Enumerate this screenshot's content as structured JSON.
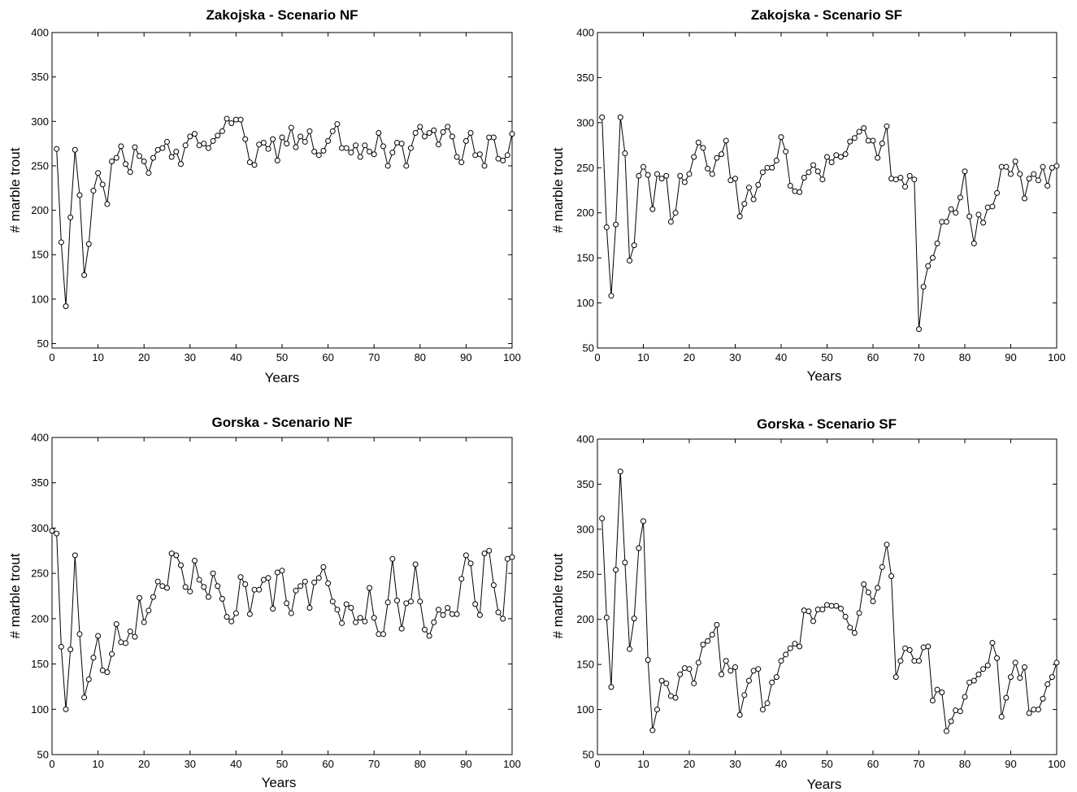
{
  "chart_data": [
    {
      "type": "line",
      "title": "Zakojska - Scenario NF",
      "xlabel": "Years",
      "ylabel": "# marble trout",
      "xlim": [
        0,
        100
      ],
      "ylim": [
        45,
        400
      ],
      "xticks": [
        0,
        10,
        20,
        30,
        40,
        50,
        60,
        70,
        80,
        90,
        100
      ],
      "yticks": [
        50,
        100,
        150,
        200,
        250,
        300,
        350,
        400
      ],
      "grid": false,
      "series": [
        {
          "marker": "circle",
          "x": [
            1,
            2,
            3,
            4,
            5,
            6,
            7,
            8,
            9,
            10,
            11,
            12,
            13,
            14,
            15,
            16,
            17,
            18,
            19,
            20,
            21,
            22,
            23,
            24,
            25,
            26,
            27,
            28,
            29,
            30,
            31,
            32,
            33,
            34,
            35,
            36,
            37,
            38,
            39,
            40,
            41,
            42,
            43,
            44,
            45,
            46,
            47,
            48,
            49,
            50,
            51,
            52,
            53,
            54,
            55,
            56,
            57,
            58,
            59,
            60,
            61,
            62,
            63,
            64,
            65,
            66,
            67,
            68,
            69,
            70,
            71,
            72,
            73,
            74,
            75,
            76,
            77,
            78,
            79,
            80,
            81,
            82,
            83,
            84,
            85,
            86,
            87,
            88,
            89,
            90,
            91,
            92,
            93,
            94,
            95,
            96,
            97,
            98,
            99,
            100
          ],
          "y": [
            269,
            164,
            92,
            192,
            268,
            217,
            127,
            162,
            222,
            242,
            229,
            207,
            255,
            259,
            272,
            252,
            243,
            271,
            261,
            255,
            242,
            259,
            268,
            270,
            277,
            260,
            266,
            252,
            273,
            283,
            286,
            273,
            275,
            270,
            278,
            284,
            289,
            303,
            298,
            302,
            302,
            280,
            254,
            251,
            274,
            276,
            269,
            280,
            256,
            282,
            275,
            293,
            271,
            283,
            277,
            289,
            266,
            262,
            267,
            278,
            289,
            297,
            270,
            270,
            265,
            273,
            260,
            273,
            266,
            263,
            287,
            272,
            250,
            265,
            276,
            275,
            250,
            270,
            287,
            294,
            283,
            287,
            290,
            274,
            288,
            294,
            283,
            260,
            254,
            278,
            287,
            262,
            263,
            250,
            282,
            282,
            258,
            256,
            262,
            286
          ]
        }
      ]
    },
    {
      "type": "line",
      "title": "Zakojska - Scenario SF",
      "xlabel": "Years",
      "ylabel": "# marble trout",
      "xlim": [
        0,
        100
      ],
      "ylim": [
        50,
        400
      ],
      "xticks": [
        0,
        10,
        20,
        30,
        40,
        50,
        60,
        70,
        80,
        90,
        100
      ],
      "yticks": [
        50,
        100,
        150,
        200,
        250,
        300,
        350,
        400
      ],
      "grid": false,
      "series": [
        {
          "marker": "circle",
          "x": [
            1,
            2,
            3,
            4,
            5,
            6,
            7,
            8,
            9,
            10,
            11,
            12,
            13,
            14,
            15,
            16,
            17,
            18,
            19,
            20,
            21,
            22,
            23,
            24,
            25,
            26,
            27,
            28,
            29,
            30,
            31,
            32,
            33,
            34,
            35,
            36,
            37,
            38,
            39,
            40,
            41,
            42,
            43,
            44,
            45,
            46,
            47,
            48,
            49,
            50,
            51,
            52,
            53,
            54,
            55,
            56,
            57,
            58,
            59,
            60,
            61,
            62,
            63,
            64,
            65,
            66,
            67,
            68,
            69,
            70,
            71,
            72,
            73,
            74,
            75,
            76,
            77,
            78,
            79,
            80,
            81,
            82,
            83,
            84,
            85,
            86,
            87,
            88,
            89,
            90,
            91,
            92,
            93,
            94,
            95,
            96,
            97,
            98,
            99,
            100
          ],
          "y": [
            306,
            184,
            108,
            187,
            306,
            266,
            147,
            164,
            241,
            251,
            242,
            204,
            243,
            238,
            241,
            190,
            200,
            241,
            234,
            243,
            262,
            278,
            272,
            249,
            243,
            261,
            265,
            280,
            236,
            238,
            196,
            210,
            228,
            215,
            231,
            245,
            250,
            250,
            258,
            284,
            268,
            230,
            224,
            223,
            239,
            245,
            253,
            246,
            237,
            262,
            256,
            264,
            262,
            265,
            279,
            283,
            290,
            294,
            280,
            280,
            261,
            277,
            296,
            238,
            237,
            239,
            229,
            241,
            237,
            71,
            118,
            141,
            150,
            166,
            190,
            190,
            204,
            200,
            217,
            246,
            196,
            166,
            198,
            189,
            206,
            207,
            222,
            251,
            251,
            243,
            257,
            243,
            216,
            238,
            243,
            236,
            251,
            230,
            250,
            252
          ]
        }
      ]
    },
    {
      "type": "line",
      "title": "Gorska - Scenario NF",
      "xlabel": "Years",
      "ylabel": "# marble trout",
      "xlim": [
        0,
        100
      ],
      "ylim": [
        50,
        400
      ],
      "xticks": [
        0,
        10,
        20,
        30,
        40,
        50,
        60,
        70,
        80,
        90,
        100
      ],
      "yticks": [
        50,
        100,
        150,
        200,
        250,
        300,
        350,
        400
      ],
      "grid": false,
      "series": [
        {
          "marker": "circle",
          "x": [
            0,
            1,
            2,
            3,
            4,
            5,
            6,
            7,
            8,
            9,
            10,
            11,
            12,
            13,
            14,
            15,
            16,
            17,
            18,
            19,
            20,
            21,
            22,
            23,
            24,
            25,
            26,
            27,
            28,
            29,
            30,
            31,
            32,
            33,
            34,
            35,
            36,
            37,
            38,
            39,
            40,
            41,
            42,
            43,
            44,
            45,
            46,
            47,
            48,
            49,
            50,
            51,
            52,
            53,
            54,
            55,
            56,
            57,
            58,
            59,
            60,
            61,
            62,
            63,
            64,
            65,
            66,
            67,
            68,
            69,
            70,
            71,
            72,
            73,
            74,
            75,
            76,
            77,
            78,
            79,
            80,
            81,
            82,
            83,
            84,
            85,
            86,
            87,
            88,
            89,
            90,
            91,
            92,
            93,
            94,
            95,
            96,
            97,
            98,
            99,
            100
          ],
          "y": [
            297,
            294,
            169,
            100,
            166,
            270,
            183,
            113,
            133,
            157,
            181,
            143,
            141,
            161,
            194,
            174,
            173,
            186,
            180,
            223,
            196,
            209,
            224,
            241,
            236,
            234,
            272,
            270,
            259,
            235,
            230,
            264,
            243,
            235,
            224,
            250,
            236,
            222,
            202,
            197,
            206,
            246,
            238,
            205,
            232,
            232,
            243,
            245,
            211,
            251,
            253,
            217,
            206,
            231,
            236,
            241,
            212,
            240,
            245,
            257,
            239,
            219,
            210,
            195,
            216,
            212,
            196,
            201,
            197,
            234,
            201,
            183,
            183,
            218,
            266,
            220,
            189,
            217,
            219,
            260,
            219,
            188,
            181,
            196,
            210,
            204,
            212,
            205,
            205,
            244,
            270,
            261,
            216,
            204,
            272,
            275,
            237,
            207,
            200,
            266,
            268
          ]
        }
      ]
    },
    {
      "type": "line",
      "title": "Gorska - Scenario SF",
      "xlabel": "Years",
      "ylabel": "# marble trout",
      "xlim": [
        0,
        100
      ],
      "ylim": [
        50,
        400
      ],
      "xticks": [
        0,
        10,
        20,
        30,
        40,
        50,
        60,
        70,
        80,
        90,
        100
      ],
      "yticks": [
        50,
        100,
        150,
        200,
        250,
        300,
        350,
        400
      ],
      "grid": false,
      "series": [
        {
          "marker": "circle",
          "x": [
            1,
            2,
            3,
            4,
            5,
            6,
            7,
            8,
            9,
            10,
            11,
            12,
            13,
            14,
            15,
            16,
            17,
            18,
            19,
            20,
            21,
            22,
            23,
            24,
            25,
            26,
            27,
            28,
            29,
            30,
            31,
            32,
            33,
            34,
            35,
            36,
            37,
            38,
            39,
            40,
            41,
            42,
            43,
            44,
            45,
            46,
            47,
            48,
            49,
            50,
            51,
            52,
            53,
            54,
            55,
            56,
            57,
            58,
            59,
            60,
            61,
            62,
            63,
            64,
            65,
            66,
            67,
            68,
            69,
            70,
            71,
            72,
            73,
            74,
            75,
            76,
            77,
            78,
            79,
            80,
            81,
            82,
            83,
            84,
            85,
            86,
            87,
            88,
            89,
            90,
            91,
            92,
            93,
            94,
            95,
            96,
            97,
            98,
            99,
            100
          ],
          "y": [
            312,
            202,
            125,
            255,
            364,
            263,
            167,
            201,
            279,
            309,
            155,
            77,
            100,
            132,
            129,
            115,
            113,
            139,
            146,
            145,
            129,
            152,
            172,
            176,
            183,
            194,
            139,
            154,
            143,
            147,
            94,
            116,
            132,
            143,
            145,
            100,
            107,
            130,
            136,
            154,
            161,
            168,
            173,
            170,
            210,
            209,
            198,
            211,
            211,
            216,
            215,
            215,
            212,
            203,
            191,
            185,
            207,
            239,
            230,
            220,
            235,
            258,
            283,
            248,
            136,
            154,
            168,
            166,
            154,
            154,
            169,
            170,
            110,
            122,
            119,
            76,
            87,
            99,
            98,
            114,
            130,
            132,
            139,
            145,
            149,
            174,
            157,
            92,
            113,
            136,
            152,
            135,
            147,
            96,
            100,
            100,
            112,
            128,
            136,
            152
          ]
        }
      ]
    }
  ]
}
